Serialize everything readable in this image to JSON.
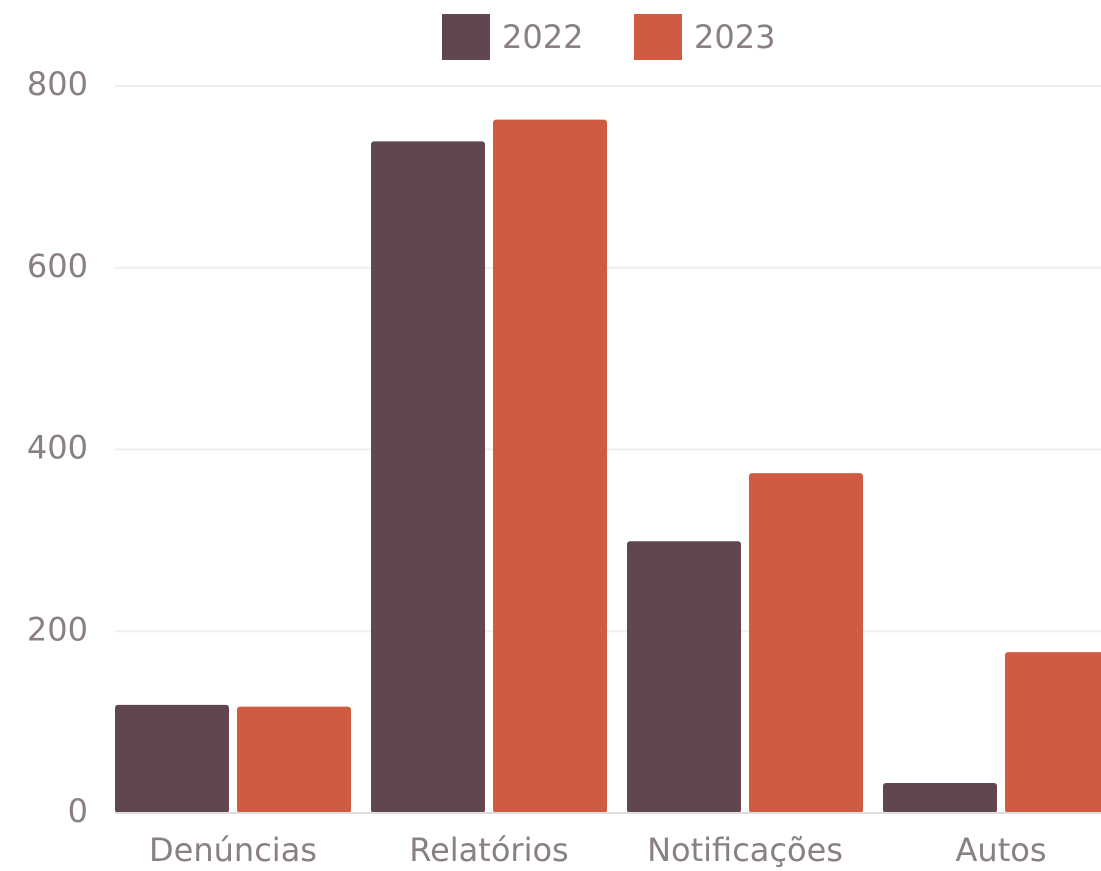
{
  "chart_data": {
    "type": "bar",
    "categories": [
      "Denúncias",
      "Relatórios",
      "Notificações",
      "Autos"
    ],
    "series": [
      {
        "name": "2022",
        "color": "#5f4650",
        "values": [
          119,
          739,
          299,
          33
        ]
      },
      {
        "name": "2023",
        "color": "#cf5c42",
        "values": [
          117,
          763,
          374,
          177
        ]
      }
    ],
    "ylim": [
      0,
      800
    ],
    "yticks": [
      0,
      200,
      400,
      600,
      800
    ],
    "grid": true,
    "legend": "top"
  }
}
